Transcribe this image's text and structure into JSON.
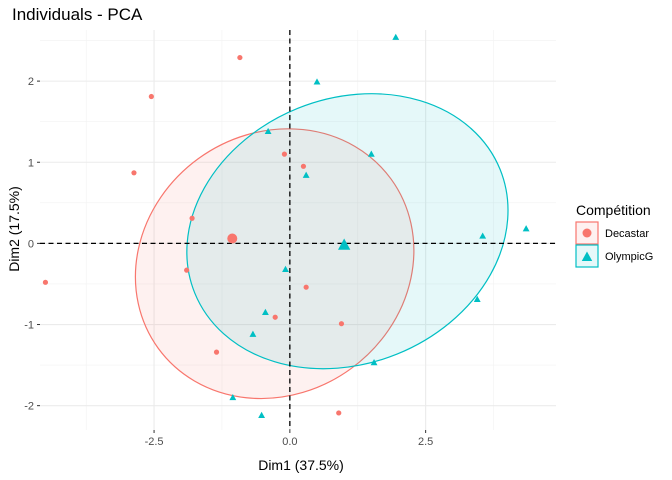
{
  "chart_data": {
    "type": "scatter",
    "title": "Individuals - PCA",
    "xlabel": "Dim1 (37.5%)",
    "ylabel": "Dim2 (17.5%)",
    "xlim": [
      -4.6,
      4.9
    ],
    "ylim": [
      -2.3,
      2.63
    ],
    "x_ticks": [
      -2.5,
      0.0,
      2.5
    ],
    "x_tick_labels": [
      "-2.5",
      "0.0",
      "2.5"
    ],
    "y_ticks": [
      -2,
      -1,
      0,
      1,
      2
    ],
    "y_tick_labels": [
      "-2",
      "-1",
      "0",
      "1",
      "2"
    ],
    "grid": true,
    "legend": {
      "title": "Compétition",
      "position": "right"
    },
    "series": [
      {
        "name": "Decastar",
        "color": "#F8766D",
        "marker": "circle",
        "points": [
          [
            -4.5,
            -0.48
          ],
          [
            -2.55,
            1.81
          ],
          [
            -2.87,
            0.87
          ],
          [
            -1.8,
            0.31
          ],
          [
            -1.9,
            -0.33
          ],
          [
            -1.35,
            -1.34
          ],
          [
            -0.92,
            2.29
          ],
          [
            -0.1,
            1.1
          ],
          [
            0.25,
            0.95
          ],
          [
            0.3,
            -0.54
          ],
          [
            -0.27,
            -0.91
          ],
          [
            0.95,
            -0.99
          ],
          [
            0.9,
            -2.09
          ]
        ],
        "centroid": [
          -1.06,
          0.06
        ],
        "ellipse": {
          "center": [
            -0.28,
            -0.25
          ],
          "semi_axes": [
            2.65,
            1.6
          ],
          "rotation_deg": -36
        }
      },
      {
        "name": "OlympicG",
        "color": "#00BFC4",
        "marker": "triangle",
        "points": [
          [
            1.95,
            2.54
          ],
          [
            0.5,
            1.99
          ],
          [
            1.5,
            1.1
          ],
          [
            -0.4,
            1.38
          ],
          [
            0.3,
            0.84
          ],
          [
            -0.08,
            -0.32
          ],
          [
            -0.45,
            -0.85
          ],
          [
            -0.68,
            -1.12
          ],
          [
            3.55,
            0.09
          ],
          [
            4.35,
            0.18
          ],
          [
            3.45,
            -0.69
          ],
          [
            1.55,
            -1.47
          ],
          [
            -1.05,
            -1.9
          ],
          [
            -0.52,
            -2.12
          ]
        ],
        "centroid": [
          1.0,
          -0.02
        ],
        "ellipse": {
          "center": [
            1.06,
            0.15
          ],
          "semi_axes": [
            2.44,
            2.03
          ],
          "rotation_deg": 68
        }
      }
    ]
  }
}
